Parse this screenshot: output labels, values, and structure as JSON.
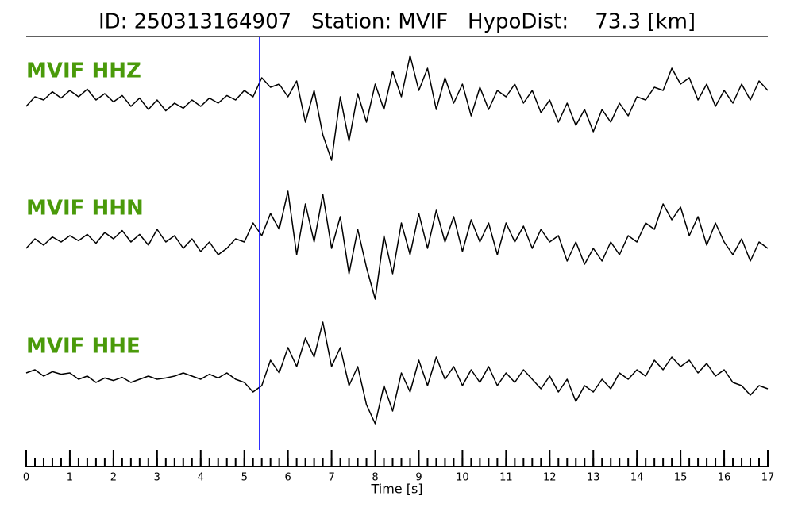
{
  "chart_data": {
    "type": "seismogram",
    "title": "ID: 250313164907   Station: MVIF   HypoDist:    73.3 [km]",
    "x_label": "Time [s]",
    "xlim": [
      0,
      17
    ],
    "xticks": [
      0,
      1,
      2,
      3,
      4,
      5,
      6,
      7,
      8,
      9,
      10,
      11,
      12,
      13,
      14,
      15,
      16,
      17
    ],
    "minor_xtick_interval": 0.2,
    "label_color": "#4a9a0a",
    "pick": {
      "x": 5.35,
      "color": "#0000ff"
    },
    "x": [
      0,
      0.2,
      0.4,
      0.6,
      0.8,
      1,
      1.2,
      1.4,
      1.6,
      1.8,
      2,
      2.2,
      2.4,
      2.6,
      2.8,
      3,
      3.2,
      3.4,
      3.6,
      3.8,
      4,
      4.2,
      4.4,
      4.6,
      4.8,
      5,
      5.2,
      5.4,
      5.6,
      5.8,
      6,
      6.2,
      6.4,
      6.6,
      6.8,
      7,
      7.2,
      7.4,
      7.6,
      7.8,
      8,
      8.2,
      8.4,
      8.6,
      8.8,
      9,
      9.2,
      9.4,
      9.6,
      9.8,
      10,
      10.2,
      10.4,
      10.6,
      10.8,
      11,
      11.2,
      11.4,
      11.6,
      11.8,
      12,
      12.2,
      12.4,
      12.6,
      12.8,
      13,
      13.2,
      13.4,
      13.6,
      13.8,
      14,
      14.2,
      14.4,
      14.6,
      14.8,
      15,
      15.2,
      15.4,
      15.6,
      15.8,
      16,
      16.2,
      16.4,
      16.6,
      16.8,
      17
    ],
    "series": [
      {
        "name": "MVIF HHZ",
        "color": "#000000",
        "values": [
          -0.05,
          0.1,
          0.05,
          0.18,
          0.08,
          0.2,
          0.1,
          0.22,
          0.05,
          0.15,
          0.02,
          0.12,
          -0.05,
          0.08,
          -0.1,
          0.05,
          -0.12,
          0.0,
          -0.08,
          0.05,
          -0.05,
          0.08,
          0.0,
          0.12,
          0.05,
          0.2,
          0.1,
          0.4,
          0.25,
          0.3,
          0.1,
          0.35,
          -0.3,
          0.2,
          -0.5,
          -0.9,
          0.1,
          -0.6,
          0.15,
          -0.3,
          0.3,
          -0.1,
          0.5,
          0.1,
          0.75,
          0.2,
          0.55,
          -0.1,
          0.4,
          0.0,
          0.3,
          -0.2,
          0.25,
          -0.1,
          0.2,
          0.1,
          0.3,
          0.0,
          0.2,
          -0.15,
          0.05,
          -0.3,
          0.0,
          -0.35,
          -0.1,
          -0.45,
          -0.1,
          -0.3,
          0.0,
          -0.2,
          0.1,
          0.05,
          0.25,
          0.2,
          0.55,
          0.3,
          0.4,
          0.05,
          0.3,
          -0.05,
          0.2,
          0.0,
          0.3,
          0.05,
          0.35,
          0.2
        ]
      },
      {
        "name": "MVIF HHN",
        "color": "#000000",
        "values": [
          -0.1,
          0.05,
          -0.05,
          0.08,
          0.0,
          0.1,
          0.02,
          0.12,
          -0.02,
          0.15,
          0.05,
          0.18,
          0.0,
          0.12,
          -0.05,
          0.2,
          0.0,
          0.1,
          -0.1,
          0.05,
          -0.15,
          0.0,
          -0.2,
          -0.1,
          0.05,
          0.0,
          0.3,
          0.1,
          0.45,
          0.2,
          0.8,
          -0.2,
          0.6,
          0.0,
          0.75,
          -0.1,
          0.4,
          -0.5,
          0.2,
          -0.4,
          -0.9,
          0.1,
          -0.5,
          0.3,
          -0.2,
          0.45,
          -0.1,
          0.5,
          0.0,
          0.4,
          -0.15,
          0.35,
          0.0,
          0.3,
          -0.2,
          0.3,
          0.0,
          0.25,
          -0.1,
          0.2,
          0.0,
          0.1,
          -0.3,
          0.0,
          -0.35,
          -0.1,
          -0.3,
          0.0,
          -0.2,
          0.1,
          0.0,
          0.3,
          0.2,
          0.6,
          0.35,
          0.55,
          0.1,
          0.4,
          -0.05,
          0.3,
          0.0,
          -0.2,
          0.05,
          -0.3,
          0.0,
          -0.1
        ]
      },
      {
        "name": "MVIF HHE",
        "color": "#000000",
        "values": [
          0.1,
          0.15,
          0.05,
          0.12,
          0.08,
          0.1,
          0.0,
          0.05,
          -0.05,
          0.02,
          -0.02,
          0.03,
          -0.05,
          0.0,
          0.05,
          0.0,
          0.02,
          0.05,
          0.1,
          0.05,
          0.0,
          0.08,
          0.02,
          0.1,
          0.0,
          -0.05,
          -0.2,
          -0.1,
          0.3,
          0.1,
          0.5,
          0.2,
          0.65,
          0.35,
          0.9,
          0.2,
          0.5,
          -0.1,
          0.2,
          -0.4,
          -0.7,
          -0.1,
          -0.5,
          0.1,
          -0.2,
          0.3,
          -0.1,
          0.35,
          0.0,
          0.2,
          -0.1,
          0.15,
          -0.05,
          0.2,
          -0.1,
          0.1,
          -0.05,
          0.15,
          0.0,
          -0.15,
          0.05,
          -0.2,
          0.0,
          -0.35,
          -0.1,
          -0.2,
          0.0,
          -0.15,
          0.1,
          0.0,
          0.15,
          0.05,
          0.3,
          0.15,
          0.35,
          0.2,
          0.3,
          0.1,
          0.25,
          0.05,
          0.15,
          -0.05,
          -0.1,
          -0.25,
          -0.1,
          -0.15
        ]
      }
    ]
  }
}
